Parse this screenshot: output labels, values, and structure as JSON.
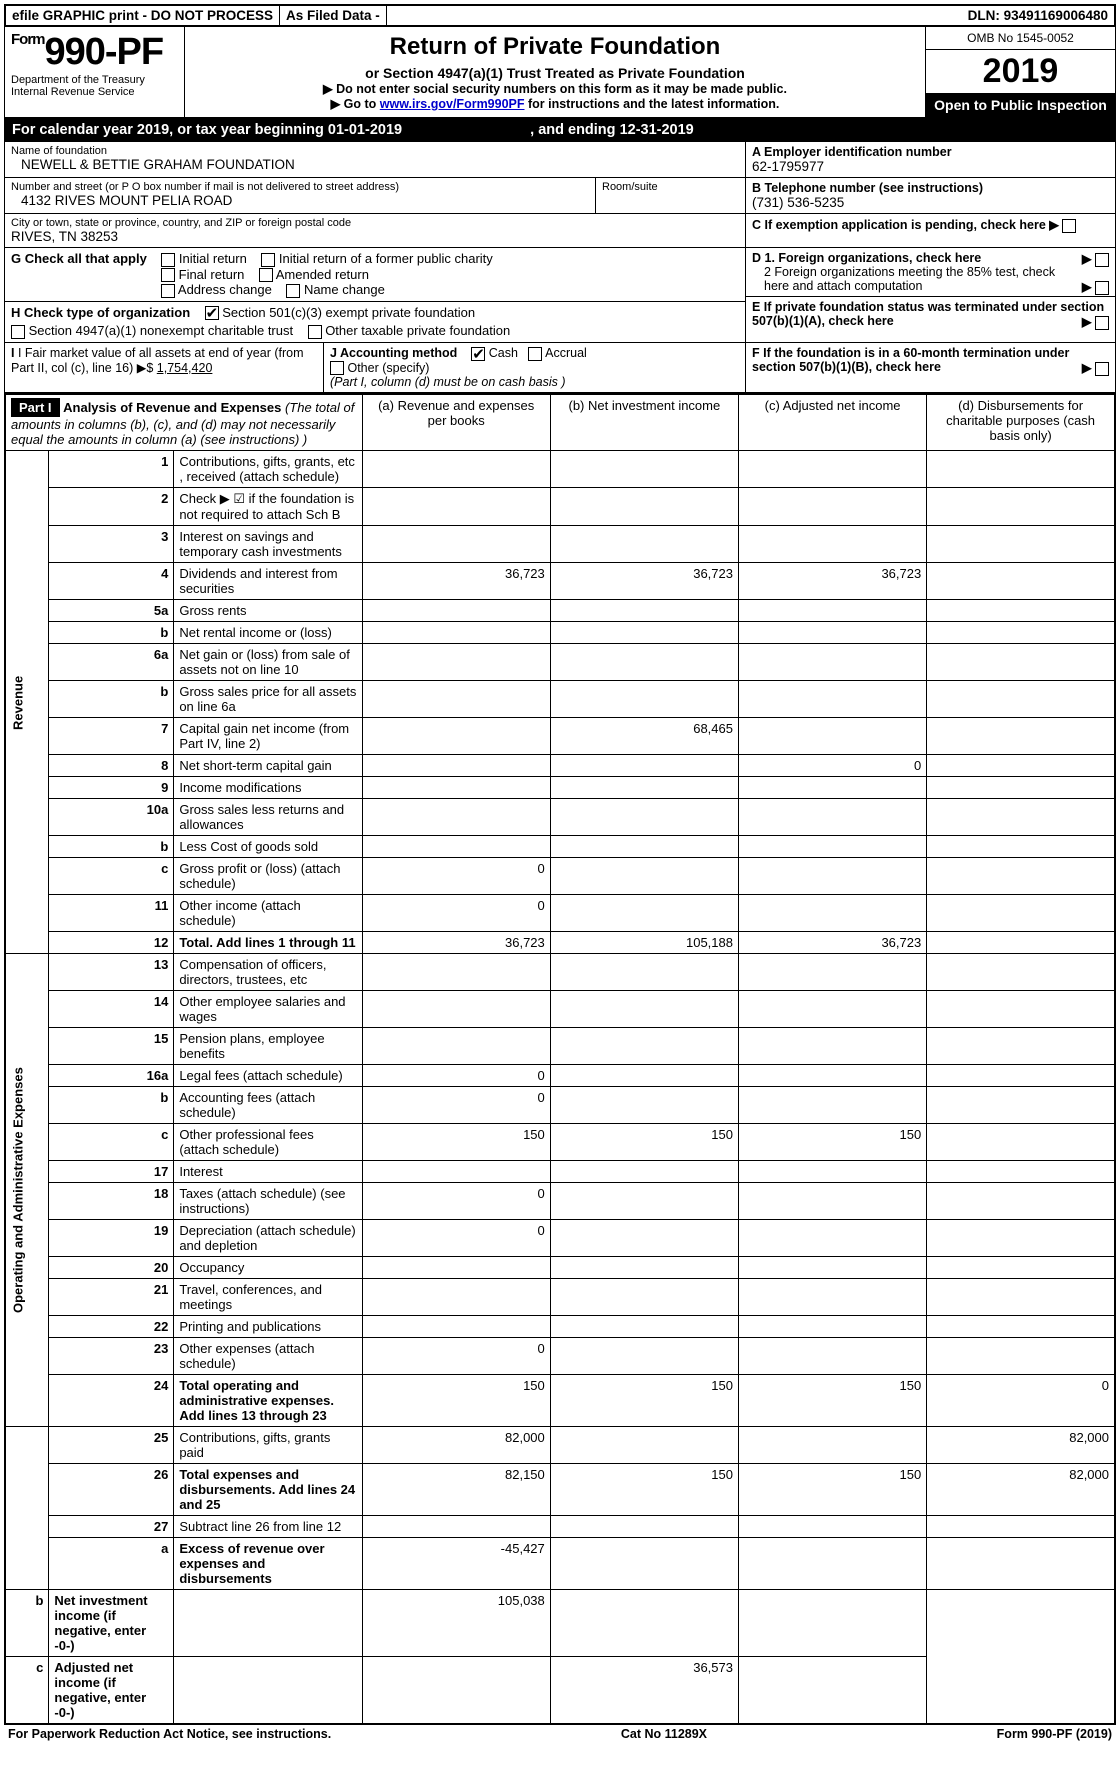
{
  "topbar": {
    "efile": "efile GRAPHIC print - DO NOT PROCESS",
    "asfiled": "As Filed Data -",
    "dln_label": "DLN:",
    "dln": "93491169006480"
  },
  "header": {
    "form_prefix": "Form",
    "form_no": "990-PF",
    "dept1": "Department of the Treasury",
    "dept2": "Internal Revenue Service",
    "title": "Return of Private Foundation",
    "subtitle": "or Section 4947(a)(1) Trust Treated as Private Foundation",
    "instr1": "▶ Do not enter social security numbers on this form as it may be made public.",
    "instr2_pre": "▶ Go to ",
    "instr2_link": "www.irs.gov/Form990PF",
    "instr2_post": " for instructions and the latest information.",
    "omb": "OMB No 1545-0052",
    "year": "2019",
    "open": "Open to Public Inspection"
  },
  "cal": {
    "text_a": "For calendar year 2019, or tax year beginning ",
    "begin": "01-01-2019",
    "text_b": " , and ending ",
    "end": "12-31-2019"
  },
  "id": {
    "name_label": "Name of foundation",
    "name": "NEWELL & BETTIE GRAHAM FOUNDATION",
    "ein_label": "A Employer identification number",
    "ein": "62-1795977",
    "addr_label": "Number and street (or P O  box number if mail is not delivered to street address)",
    "addr": "4132 RIVES MOUNT PELIA ROAD",
    "room_label": "Room/suite",
    "phone_label": "B Telephone number (see instructions)",
    "phone": "(731) 536-5235",
    "city_label": "City or town, state or province, country, and ZIP or foreign postal code",
    "city": "RIVES, TN  38253",
    "c_label": "C If exemption application is pending, check here"
  },
  "checks": {
    "g": "G Check all that apply",
    "g1": "Initial return",
    "g2": "Initial return of a former public charity",
    "g3": "Final return",
    "g4": "Amended return",
    "g5": "Address change",
    "g6": "Name change",
    "h": "H Check type of organization",
    "h1": "Section 501(c)(3) exempt private foundation",
    "h2": "Section 4947(a)(1) nonexempt charitable trust",
    "h3": "Other taxable private foundation",
    "i_label": "I Fair market value of all assets at end of year (from Part II, col  (c), line 16) ▶$ ",
    "i_val": "1,754,420",
    "j_label": "J Accounting method",
    "j1": "Cash",
    "j2": "Accrual",
    "j3": "Other (specify)",
    "j_note": "(Part I, column (d) must be on cash basis )",
    "d1": "D 1. Foreign organizations, check here",
    "d2": "2 Foreign organizations meeting the 85% test, check here and attach computation",
    "e": "E  If private foundation status was terminated under section 507(b)(1)(A), check here",
    "f": "F  If the foundation is in a 60-month termination under section 507(b)(1)(B), check here"
  },
  "part1": {
    "label": "Part I",
    "title": "Analysis of Revenue and Expenses",
    "title_note": " (The total of amounts in columns (b), (c), and (d) may not necessarily equal the amounts in column (a) (see instructions) )",
    "col_a": "(a) Revenue and expenses per books",
    "col_b": "(b) Net investment income",
    "col_c": "(c) Adjusted net income",
    "col_d": "(d) Disbursements for charitable purposes (cash basis only)",
    "side_rev": "Revenue",
    "side_exp": "Operating and Administrative Expenses"
  },
  "rows": [
    {
      "n": "1",
      "t": "Contributions, gifts, grants, etc , received (attach schedule)"
    },
    {
      "n": "2",
      "t": "Check ▶ ☑ if the foundation is not required to attach Sch B"
    },
    {
      "n": "3",
      "t": "Interest on savings and temporary cash investments"
    },
    {
      "n": "4",
      "t": "Dividends and interest from securities",
      "a": "36,723",
      "b": "36,723",
      "c": "36,723"
    },
    {
      "n": "5a",
      "t": "Gross rents"
    },
    {
      "n": "b",
      "t": "Net rental income or (loss)"
    },
    {
      "n": "6a",
      "t": "Net gain or (loss) from sale of assets not on line 10"
    },
    {
      "n": "b",
      "t": "Gross sales price for all assets on line 6a"
    },
    {
      "n": "7",
      "t": "Capital gain net income (from Part IV, line 2)",
      "b": "68,465"
    },
    {
      "n": "8",
      "t": "Net short-term capital gain",
      "c": "0"
    },
    {
      "n": "9",
      "t": "Income modifications"
    },
    {
      "n": "10a",
      "t": "Gross sales less returns and allowances"
    },
    {
      "n": "b",
      "t": "Less  Cost of goods sold"
    },
    {
      "n": "c",
      "t": "Gross profit or (loss) (attach schedule)",
      "a": "0"
    },
    {
      "n": "11",
      "t": "Other income (attach schedule)",
      "a": "0"
    },
    {
      "n": "12",
      "t": "Total. Add lines 1 through 11",
      "bold": true,
      "a": "36,723",
      "b": "105,188",
      "c": "36,723"
    },
    {
      "n": "13",
      "t": "Compensation of officers, directors, trustees, etc"
    },
    {
      "n": "14",
      "t": "Other employee salaries and wages"
    },
    {
      "n": "15",
      "t": "Pension plans, employee benefits"
    },
    {
      "n": "16a",
      "t": "Legal fees (attach schedule)",
      "a": "0"
    },
    {
      "n": "b",
      "t": "Accounting fees (attach schedule)",
      "a": "0"
    },
    {
      "n": "c",
      "t": "Other professional fees (attach schedule)",
      "a": "150",
      "b": "150",
      "c": "150"
    },
    {
      "n": "17",
      "t": "Interest"
    },
    {
      "n": "18",
      "t": "Taxes (attach schedule) (see instructions)",
      "a": "0"
    },
    {
      "n": "19",
      "t": "Depreciation (attach schedule) and depletion",
      "a": "0"
    },
    {
      "n": "20",
      "t": "Occupancy"
    },
    {
      "n": "21",
      "t": "Travel, conferences, and meetings"
    },
    {
      "n": "22",
      "t": "Printing and publications"
    },
    {
      "n": "23",
      "t": "Other expenses (attach schedule)",
      "a": "0"
    },
    {
      "n": "24",
      "t": "Total operating and administrative expenses. Add lines 13 through 23",
      "bold": true,
      "a": "150",
      "b": "150",
      "c": "150",
      "d": "0"
    },
    {
      "n": "25",
      "t": "Contributions, gifts, grants paid",
      "a": "82,000",
      "d": "82,000"
    },
    {
      "n": "26",
      "t": "Total expenses and disbursements. Add lines 24 and 25",
      "bold": true,
      "a": "82,150",
      "b": "150",
      "c": "150",
      "d": "82,000"
    },
    {
      "n": "27",
      "t": "Subtract line 26 from line 12"
    },
    {
      "n": "a",
      "t": "Excess of revenue over expenses and disbursements",
      "bold": true,
      "a": "-45,427"
    },
    {
      "n": "b",
      "t": "Net investment income (if negative, enter -0-)",
      "bold": true,
      "b": "105,038"
    },
    {
      "n": "c",
      "t": "Adjusted net income (if negative, enter -0-)",
      "bold": true,
      "c": "36,573"
    }
  ],
  "footer": {
    "left": "For Paperwork Reduction Act Notice, see instructions.",
    "mid": "Cat  No  11289X",
    "right": "Form 990-PF (2019)"
  }
}
